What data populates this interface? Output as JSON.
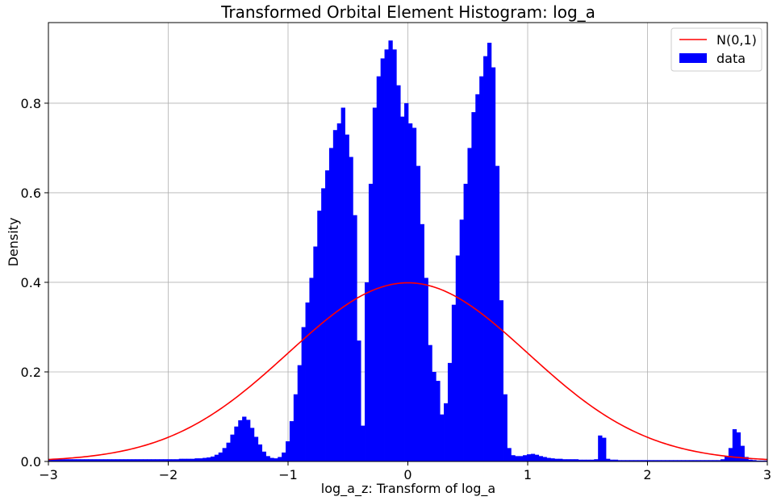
{
  "chart_data": {
    "type": "bar",
    "title": "Transformed Orbital Element Histogram: log_a",
    "xlabel": "log_a_z: Transform of log_a",
    "ylabel": "Density",
    "xlim": [
      -3,
      3
    ],
    "ylim": [
      0,
      0.98
    ],
    "xticks": [
      -3,
      -2,
      -1,
      0,
      1,
      2,
      3
    ],
    "xtick_labels": [
      "−3",
      "−2",
      "−1",
      "0",
      "1",
      "2",
      "3"
    ],
    "yticks": [
      0.0,
      0.2,
      0.4,
      0.6,
      0.8
    ],
    "ytick_labels": [
      "0.0",
      "0.2",
      "0.4",
      "0.6",
      "0.8"
    ],
    "grid": true,
    "legend_position": "top-right",
    "colors": {
      "histogram": "#0000ff",
      "curve": "#ff0000"
    },
    "series": [
      {
        "name": "data",
        "kind": "histogram",
        "bin_width": 0.033,
        "bins": [
          [
            -3.0,
            0.005
          ],
          [
            -2.967,
            0.005
          ],
          [
            -2.934,
            0.005
          ],
          [
            -2.901,
            0.005
          ],
          [
            -2.868,
            0.005
          ],
          [
            -2.835,
            0.005
          ],
          [
            -2.802,
            0.005
          ],
          [
            -2.769,
            0.005
          ],
          [
            -2.736,
            0.005
          ],
          [
            -2.703,
            0.005
          ],
          [
            -2.67,
            0.005
          ],
          [
            -2.637,
            0.005
          ],
          [
            -2.604,
            0.005
          ],
          [
            -2.571,
            0.005
          ],
          [
            -2.538,
            0.005
          ],
          [
            -2.505,
            0.005
          ],
          [
            -2.472,
            0.005
          ],
          [
            -2.439,
            0.005
          ],
          [
            -2.406,
            0.005
          ],
          [
            -2.373,
            0.005
          ],
          [
            -2.34,
            0.005
          ],
          [
            -2.307,
            0.005
          ],
          [
            -2.274,
            0.005
          ],
          [
            -2.241,
            0.005
          ],
          [
            -2.208,
            0.005
          ],
          [
            -2.175,
            0.005
          ],
          [
            -2.142,
            0.005
          ],
          [
            -2.109,
            0.005
          ],
          [
            -2.076,
            0.005
          ],
          [
            -2.043,
            0.005
          ],
          [
            -2.01,
            0.005
          ],
          [
            -1.977,
            0.005
          ],
          [
            -1.944,
            0.005
          ],
          [
            -1.911,
            0.006
          ],
          [
            -1.878,
            0.006
          ],
          [
            -1.845,
            0.006
          ],
          [
            -1.812,
            0.006
          ],
          [
            -1.779,
            0.007
          ],
          [
            -1.746,
            0.007
          ],
          [
            -1.713,
            0.008
          ],
          [
            -1.68,
            0.009
          ],
          [
            -1.647,
            0.011
          ],
          [
            -1.614,
            0.015
          ],
          [
            -1.581,
            0.02
          ],
          [
            -1.548,
            0.03
          ],
          [
            -1.515,
            0.042
          ],
          [
            -1.482,
            0.06
          ],
          [
            -1.449,
            0.078
          ],
          [
            -1.416,
            0.092
          ],
          [
            -1.383,
            0.1
          ],
          [
            -1.35,
            0.093
          ],
          [
            -1.317,
            0.075
          ],
          [
            -1.284,
            0.055
          ],
          [
            -1.251,
            0.038
          ],
          [
            -1.218,
            0.022
          ],
          [
            -1.185,
            0.012
          ],
          [
            -1.152,
            0.008
          ],
          [
            -1.119,
            0.007
          ],
          [
            -1.086,
            0.01
          ],
          [
            -1.053,
            0.02
          ],
          [
            -1.02,
            0.045
          ],
          [
            -0.987,
            0.09
          ],
          [
            -0.954,
            0.15
          ],
          [
            -0.921,
            0.215
          ],
          [
            -0.888,
            0.3
          ],
          [
            -0.855,
            0.355
          ],
          [
            -0.822,
            0.41
          ],
          [
            -0.789,
            0.48
          ],
          [
            -0.756,
            0.56
          ],
          [
            -0.723,
            0.61
          ],
          [
            -0.69,
            0.65
          ],
          [
            -0.657,
            0.7
          ],
          [
            -0.624,
            0.74
          ],
          [
            -0.591,
            0.755
          ],
          [
            -0.558,
            0.79
          ],
          [
            -0.525,
            0.73
          ],
          [
            -0.492,
            0.68
          ],
          [
            -0.459,
            0.55
          ],
          [
            -0.426,
            0.27
          ],
          [
            -0.393,
            0.08
          ],
          [
            -0.36,
            0.4
          ],
          [
            -0.327,
            0.62
          ],
          [
            -0.294,
            0.79
          ],
          [
            -0.261,
            0.86
          ],
          [
            -0.228,
            0.9
          ],
          [
            -0.195,
            0.92
          ],
          [
            -0.162,
            0.94
          ],
          [
            -0.129,
            0.92
          ],
          [
            -0.096,
            0.84
          ],
          [
            -0.063,
            0.77
          ],
          [
            -0.03,
            0.8
          ],
          [
            0.003,
            0.755
          ],
          [
            0.036,
            0.745
          ],
          [
            0.069,
            0.66
          ],
          [
            0.102,
            0.53
          ],
          [
            0.135,
            0.41
          ],
          [
            0.168,
            0.26
          ],
          [
            0.201,
            0.2
          ],
          [
            0.234,
            0.18
          ],
          [
            0.267,
            0.105
          ],
          [
            0.3,
            0.13
          ],
          [
            0.333,
            0.22
          ],
          [
            0.366,
            0.35
          ],
          [
            0.399,
            0.46
          ],
          [
            0.432,
            0.54
          ],
          [
            0.465,
            0.62
          ],
          [
            0.498,
            0.7
          ],
          [
            0.531,
            0.78
          ],
          [
            0.564,
            0.82
          ],
          [
            0.597,
            0.86
          ],
          [
            0.63,
            0.905
          ],
          [
            0.663,
            0.935
          ],
          [
            0.696,
            0.88
          ],
          [
            0.729,
            0.66
          ],
          [
            0.762,
            0.36
          ],
          [
            0.795,
            0.15
          ],
          [
            0.828,
            0.03
          ],
          [
            0.861,
            0.014
          ],
          [
            0.894,
            0.012
          ],
          [
            0.927,
            0.012
          ],
          [
            0.96,
            0.014
          ],
          [
            0.993,
            0.016
          ],
          [
            1.026,
            0.017
          ],
          [
            1.059,
            0.015
          ],
          [
            1.092,
            0.012
          ],
          [
            1.125,
            0.01
          ],
          [
            1.158,
            0.008
          ],
          [
            1.191,
            0.007
          ],
          [
            1.224,
            0.006
          ],
          [
            1.257,
            0.006
          ],
          [
            1.29,
            0.005
          ],
          [
            1.323,
            0.005
          ],
          [
            1.356,
            0.005
          ],
          [
            1.389,
            0.005
          ],
          [
            1.422,
            0.004
          ],
          [
            1.455,
            0.004
          ],
          [
            1.488,
            0.004
          ],
          [
            1.521,
            0.004
          ],
          [
            1.554,
            0.005
          ],
          [
            1.587,
            0.058
          ],
          [
            1.62,
            0.053
          ],
          [
            1.653,
            0.006
          ],
          [
            1.686,
            0.004
          ],
          [
            1.719,
            0.004
          ],
          [
            1.752,
            0.003
          ],
          [
            1.785,
            0.003
          ],
          [
            1.818,
            0.003
          ],
          [
            1.851,
            0.003
          ],
          [
            1.884,
            0.003
          ],
          [
            1.917,
            0.003
          ],
          [
            1.95,
            0.003
          ],
          [
            1.983,
            0.003
          ],
          [
            2.016,
            0.003
          ],
          [
            2.049,
            0.003
          ],
          [
            2.082,
            0.003
          ],
          [
            2.115,
            0.003
          ],
          [
            2.148,
            0.003
          ],
          [
            2.181,
            0.003
          ],
          [
            2.214,
            0.003
          ],
          [
            2.247,
            0.003
          ],
          [
            2.28,
            0.003
          ],
          [
            2.313,
            0.003
          ],
          [
            2.346,
            0.003
          ],
          [
            2.379,
            0.003
          ],
          [
            2.412,
            0.003
          ],
          [
            2.445,
            0.003
          ],
          [
            2.478,
            0.003
          ],
          [
            2.511,
            0.003
          ],
          [
            2.544,
            0.003
          ],
          [
            2.577,
            0.003
          ],
          [
            2.61,
            0.005
          ],
          [
            2.643,
            0.012
          ],
          [
            2.676,
            0.03
          ],
          [
            2.709,
            0.072
          ],
          [
            2.742,
            0.065
          ],
          [
            2.775,
            0.035
          ],
          [
            2.808,
            0.01
          ],
          [
            2.841,
            0.004
          ],
          [
            2.874,
            0.003
          ],
          [
            2.907,
            0.002
          ],
          [
            2.94,
            0.002
          ],
          [
            2.973,
            0.002
          ]
        ]
      },
      {
        "name": "N(0,1)",
        "kind": "line",
        "function": "normal_pdf",
        "mean": 0,
        "std": 1
      }
    ],
    "legend": [
      {
        "label": "N(0,1)",
        "kind": "line",
        "color": "#ff0000"
      },
      {
        "label": "data",
        "kind": "patch",
        "color": "#0000ff"
      }
    ]
  }
}
